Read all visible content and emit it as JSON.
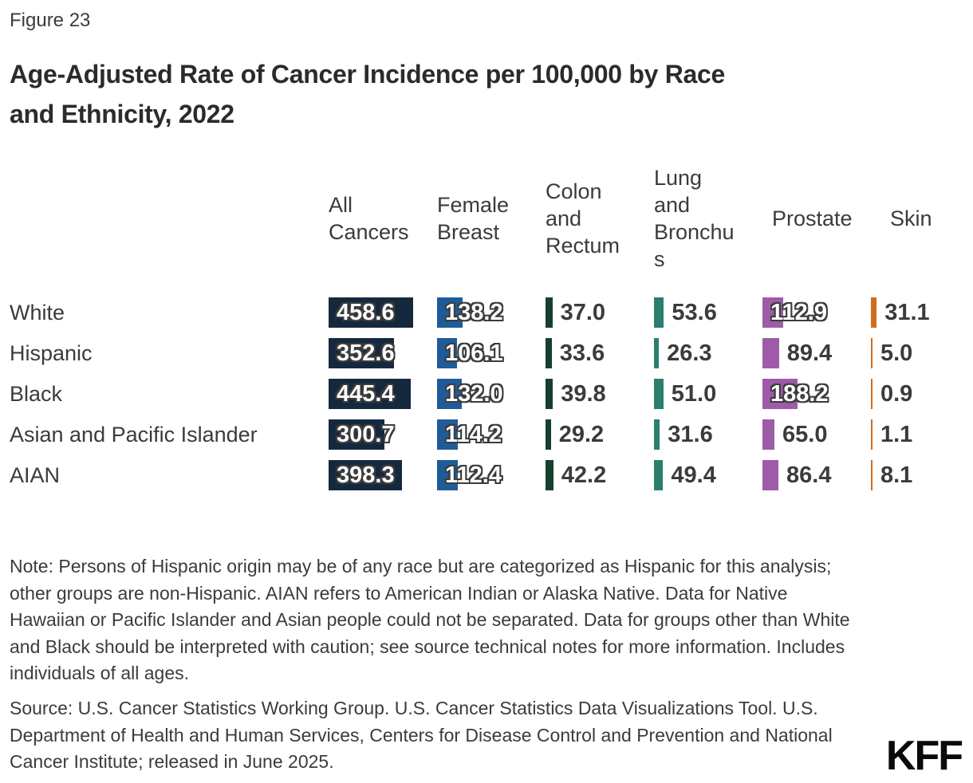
{
  "figure_label": "Figure 23",
  "title_lines": [
    "Age-Adjusted Rate of Cancer Incidence per 100,000 by Race",
    "and Ethnicity, 2022"
  ],
  "note": "Note: Persons of Hispanic origin may be of any race but are categorized as Hispanic for this analysis; other groups are non-Hispanic. AIAN refers to American Indian or Alaska Native. Data for Native Hawaiian or Pacific Islander and Asian people could not be separated. Data for groups other than White and Black should be interpreted with caution; see source technical notes for more information. Includes individuals of all ages.",
  "source": "Source: U.S. Cancer Statistics Working Group. U.S. Cancer Statistics Data Visualizations Tool. U.S. Department of Health and Human Services, Centers for Disease Control and Prevention and National Cancer Institute; released in June 2025.",
  "logo_text": "KFF",
  "chart_data": {
    "type": "bar",
    "orientation": "horizontal",
    "title": "Age-Adjusted Rate of Cancer Incidence per 100,000 by Race and Ethnicity, 2022",
    "unit": "rate per 100,000",
    "year": "2022",
    "categories": [
      "White",
      "Hispanic",
      "Black",
      "Asian and Pacific Islander",
      "AIAN"
    ],
    "series": [
      {
        "name": "All Cancers",
        "color": "#15293E",
        "values": [
          458.6,
          352.6,
          445.4,
          300.7,
          398.3
        ],
        "labels": [
          "458.6",
          "352.6",
          "445.4",
          "300.7",
          "398.3"
        ]
      },
      {
        "name": "Female Breast",
        "color": "#1E5C99",
        "values": [
          138.2,
          106.1,
          132.0,
          114.2,
          112.4
        ],
        "labels": [
          "138.2",
          "106.1",
          "132.0",
          "114.2",
          "112.4"
        ]
      },
      {
        "name": "Colon and Rectum",
        "color": "#163F2E",
        "values": [
          37.0,
          33.6,
          39.8,
          29.2,
          42.2
        ],
        "labels": [
          "37.0",
          "33.6",
          "39.8",
          "29.2",
          "42.2"
        ]
      },
      {
        "name": "Lung and Bronchus",
        "color": "#2A7F6E",
        "values": [
          53.6,
          26.3,
          51.0,
          31.6,
          49.4
        ],
        "labels": [
          "53.6",
          "26.3",
          "51.0",
          "31.6",
          "49.4"
        ]
      },
      {
        "name": "Prostate",
        "color": "#9D5BA8",
        "values": [
          112.9,
          89.4,
          188.2,
          65.0,
          86.4
        ],
        "labels": [
          "112.9",
          "89.4",
          "188.2",
          "65.0",
          "86.4"
        ]
      },
      {
        "name": "Skin",
        "color": "#CE6C1F",
        "values": [
          31.1,
          5.0,
          0.9,
          1.1,
          8.1
        ],
        "labels": [
          "31.1",
          "5.0",
          "0.9",
          "1.1",
          "8.1"
        ]
      }
    ],
    "xlim": [
      0,
      460
    ],
    "grid": false,
    "legend": "column headers above bars",
    "label_rule": "values >= 100 shown in white outlined text over bar; smaller values in dark text right of bar"
  }
}
